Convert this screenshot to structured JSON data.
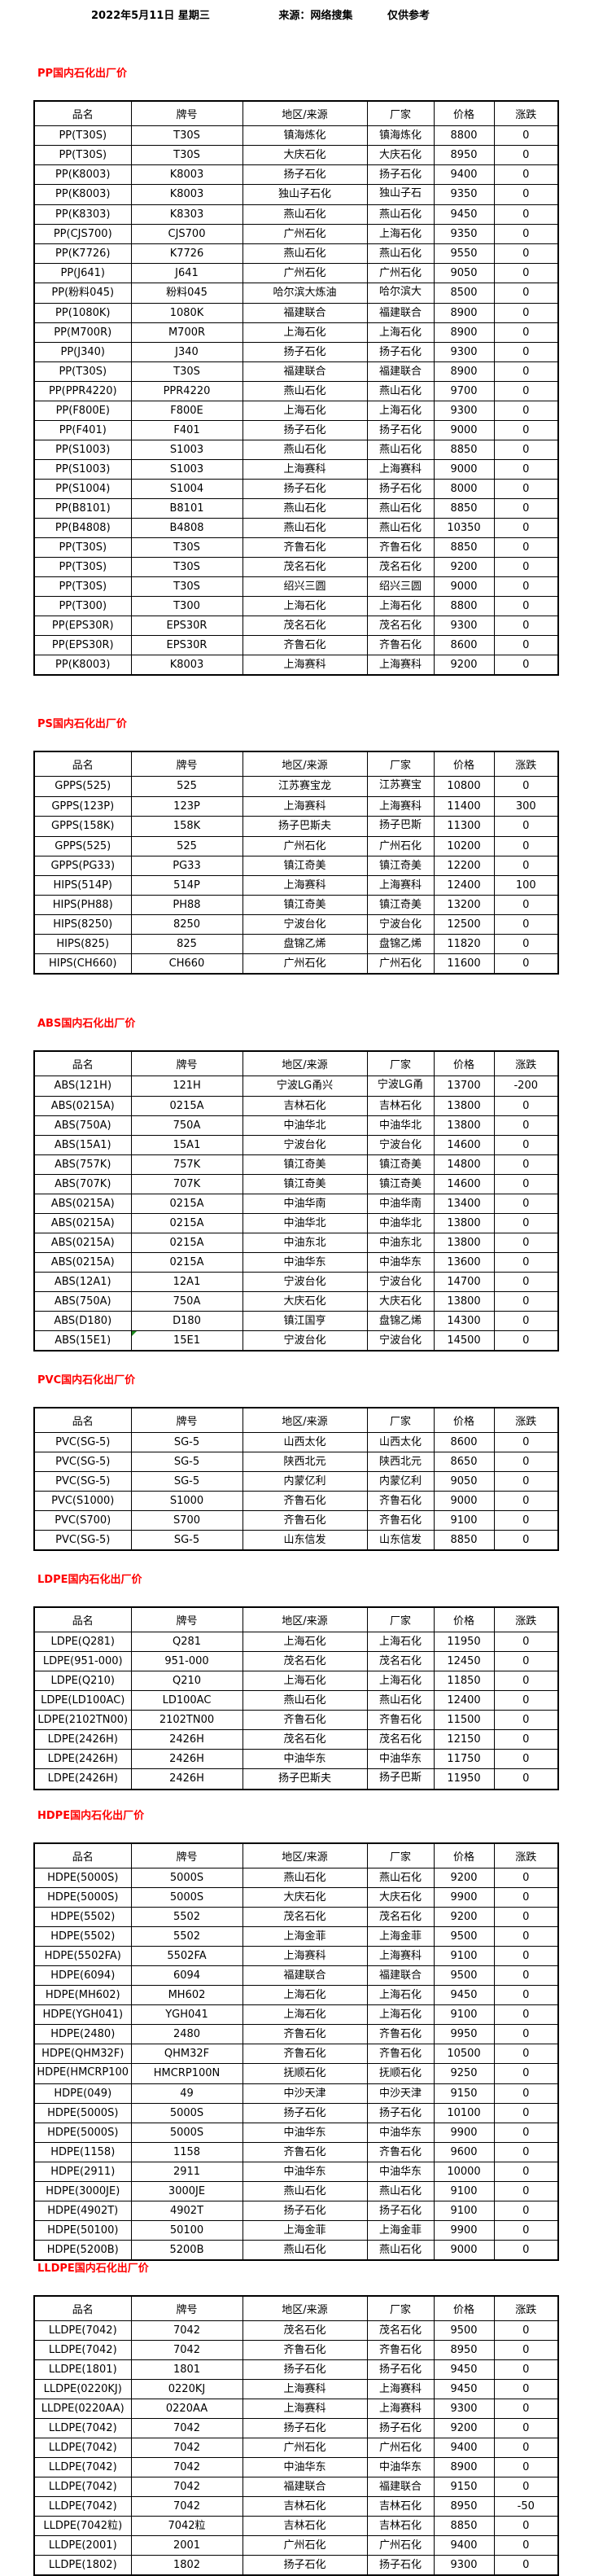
{
  "header": {
    "date": "2022年5月11日 星期三",
    "source": "来源：网络搜集",
    "note": "仅供参考"
  },
  "columns": [
    "品名",
    "牌号",
    "地区/来源",
    "厂家",
    "价格",
    "涨跌"
  ],
  "colors": {
    "heading": "#ff0000",
    "text": "#000000",
    "comment_marker": "#1f8a1f"
  },
  "sections": [
    {
      "key": "pp",
      "title": "PP国内石化出厂价",
      "rows": [
        [
          "PP(T30S)",
          "T30S",
          "镇海炼化",
          "镇海炼化",
          "8800",
          "0"
        ],
        [
          "PP(T30S)",
          "T30S",
          "大庆石化",
          "大庆石化",
          "8950",
          "0"
        ],
        [
          "PP(K8003)",
          "K8003",
          "扬子石化",
          "扬子石化",
          "9400",
          "0"
        ],
        [
          "PP(K8003)",
          "K8003",
          "独山子石化",
          "独山子石化",
          "9350",
          "0"
        ],
        [
          "PP(K8303)",
          "K8303",
          "燕山石化",
          "燕山石化",
          "9450",
          "0"
        ],
        [
          "PP(CJS700)",
          "CJS700",
          "广州石化",
          "上海石化",
          "9350",
          "0"
        ],
        [
          "PP(K7726)",
          "K7726",
          "燕山石化",
          "燕山石化",
          "9550",
          "0"
        ],
        [
          "PP(J641)",
          "J641",
          "广州石化",
          "广州石化",
          "9050",
          "0"
        ],
        [
          "PP(粉料045)",
          "粉料045",
          "哈尔滨大炼油",
          "哈尔滨大炼油",
          "8500",
          "0"
        ],
        [
          "PP(1080K)",
          "1080K",
          "福建联合",
          "福建联合",
          "8900",
          "0"
        ],
        [
          "PP(M700R)",
          "M700R",
          "上海石化",
          "上海石化",
          "8900",
          "0"
        ],
        [
          "PP(J340)",
          "J340",
          "扬子石化",
          "扬子石化",
          "9300",
          "0"
        ],
        [
          "PP(T30S)",
          "T30S",
          "福建联合",
          "福建联合",
          "8900",
          "0"
        ],
        [
          "PP(PPR4220)",
          "PPR4220",
          "燕山石化",
          "燕山石化",
          "9700",
          "0"
        ],
        [
          "PP(F800E)",
          "F800E",
          "上海石化",
          "上海石化",
          "9300",
          "0"
        ],
        [
          "PP(F401)",
          "F401",
          "扬子石化",
          "扬子石化",
          "9000",
          "0"
        ],
        [
          "PP(S1003)",
          "S1003",
          "燕山石化",
          "燕山石化",
          "8850",
          "0"
        ],
        [
          "PP(S1003)",
          "S1003",
          "上海赛科",
          "上海赛科",
          "9000",
          "0"
        ],
        [
          "PP(S1004)",
          "S1004",
          "扬子石化",
          "扬子石化",
          "8000",
          "0"
        ],
        [
          "PP(B8101)",
          "B8101",
          "燕山石化",
          "燕山石化",
          "8850",
          "0"
        ],
        [
          "PP(B4808)",
          "B4808",
          "燕山石化",
          "燕山石化",
          "10350",
          "0"
        ],
        [
          "PP(T30S)",
          "T30S",
          "齐鲁石化",
          "齐鲁石化",
          "8850",
          "0"
        ],
        [
          "PP(T30S)",
          "T30S",
          "茂名石化",
          "茂名石化",
          "9200",
          "0"
        ],
        [
          "PP(T30S)",
          "T30S",
          "绍兴三圆",
          "绍兴三圆",
          "9000",
          "0"
        ],
        [
          "PP(T300)",
          "T300",
          "上海石化",
          "上海石化",
          "8800",
          "0"
        ],
        [
          "PP(EPS30R)",
          "EPS30R",
          "茂名石化",
          "茂名石化",
          "9300",
          "0"
        ],
        [
          "PP(EPS30R)",
          "EPS30R",
          "齐鲁石化",
          "齐鲁石化",
          "8600",
          "0"
        ],
        [
          "PP(K8003)",
          "K8003",
          "上海赛科",
          "上海赛科",
          "9200",
          "0"
        ]
      ]
    },
    {
      "key": "ps",
      "title": "PS国内石化出厂价",
      "rows": [
        [
          "GPPS(525)",
          "525",
          "江苏赛宝龙",
          "江苏赛宝龙",
          "10800",
          "0"
        ],
        [
          "GPPS(123P)",
          "123P",
          "上海赛科",
          "上海赛科",
          "11400",
          "300"
        ],
        [
          "GPPS(158K)",
          "158K",
          "扬子巴斯夫",
          "扬子巴斯夫",
          "11300",
          "0"
        ],
        [
          "GPPS(525)",
          "525",
          "广州石化",
          "广州石化",
          "10200",
          "0"
        ],
        [
          "GPPS(PG33)",
          "PG33",
          "镇江奇美",
          "镇江奇美",
          "12200",
          "0"
        ],
        [
          "HIPS(514P)",
          "514P",
          "上海赛科",
          "上海赛科",
          "12400",
          "100"
        ],
        [
          "HIPS(PH88)",
          "PH88",
          "镇江奇美",
          "镇江奇美",
          "13200",
          "0"
        ],
        [
          "HIPS(8250)",
          "8250",
          "宁波台化",
          "宁波台化",
          "12500",
          "0"
        ],
        [
          "HIPS(825)",
          "825",
          "盘锦乙烯",
          "盘锦乙烯",
          "11820",
          "0"
        ],
        [
          "HIPS(CH660)",
          "CH660",
          "广州石化",
          "广州石化",
          "11600",
          "0"
        ]
      ]
    },
    {
      "key": "abs",
      "title": "ABS国内石化出厂价",
      "comment_row": 13,
      "rows": [
        [
          "ABS(121H)",
          "121H",
          "宁波LG甬兴",
          "宁波LG甬兴",
          "13700",
          "-200"
        ],
        [
          "ABS(0215A)",
          "0215A",
          "吉林石化",
          "吉林石化",
          "13800",
          "0"
        ],
        [
          "ABS(750A)",
          "750A",
          "中油华北",
          "中油华北",
          "13800",
          "0"
        ],
        [
          "ABS(15A1)",
          "15A1",
          "宁波台化",
          "宁波台化",
          "14600",
          "0"
        ],
        [
          "ABS(757K)",
          "757K",
          "镇江奇美",
          "镇江奇美",
          "14800",
          "0"
        ],
        [
          "ABS(707K)",
          "707K",
          "镇江奇美",
          "镇江奇美",
          "14600",
          "0"
        ],
        [
          "ABS(0215A)",
          "0215A",
          "中油华南",
          "中油华南",
          "13400",
          "0"
        ],
        [
          "ABS(0215A)",
          "0215A",
          "中油华北",
          "中油华北",
          "13800",
          "0"
        ],
        [
          "ABS(0215A)",
          "0215A",
          "中油东北",
          "中油东北",
          "13800",
          "0"
        ],
        [
          "ABS(0215A)",
          "0215A",
          "中油华东",
          "中油华东",
          "13600",
          "0"
        ],
        [
          "ABS(12A1)",
          "12A1",
          "宁波台化",
          "宁波台化",
          "14700",
          "0"
        ],
        [
          "ABS(750A)",
          "750A",
          "大庆石化",
          "大庆石化",
          "13800",
          "0"
        ],
        [
          "ABS(D180)",
          "D180",
          "镇江国亨",
          "盘锦乙烯",
          "14300",
          "0"
        ],
        [
          "ABS(15E1)",
          "15E1",
          "宁波台化",
          "宁波台化",
          "14500",
          "0"
        ]
      ]
    },
    {
      "key": "pvc",
      "title": "PVC国内石化出厂价",
      "rows": [
        [
          "PVC(SG-5)",
          "SG-5",
          "山西太化",
          "山西太化",
          "8600",
          "0"
        ],
        [
          "PVC(SG-5)",
          "SG-5",
          "陕西北元",
          "陕西北元",
          "8650",
          "0"
        ],
        [
          "PVC(SG-5)",
          "SG-5",
          "内蒙亿利",
          "内蒙亿利",
          "9050",
          "0"
        ],
        [
          "PVC(S1000)",
          "S1000",
          "齐鲁石化",
          "齐鲁石化",
          "9000",
          "0"
        ],
        [
          "PVC(S700)",
          "S700",
          "齐鲁石化",
          "齐鲁石化",
          "9100",
          "0"
        ],
        [
          "PVC(SG-5)",
          "SG-5",
          "山东信发",
          "山东信发",
          "8850",
          "0"
        ]
      ]
    },
    {
      "key": "ldpe",
      "title": "LDPE国内石化出厂价",
      "rows": [
        [
          "LDPE(Q281)",
          "Q281",
          "上海石化",
          "上海石化",
          "11950",
          "0"
        ],
        [
          "LDPE(951-000)",
          "951-000",
          "茂名石化",
          "茂名石化",
          "12450",
          "0"
        ],
        [
          "LDPE(Q210)",
          "Q210",
          "上海石化",
          "上海石化",
          "11850",
          "0"
        ],
        [
          "LDPE(LD100AC)",
          "LD100AC",
          "燕山石化",
          "燕山石化",
          "12400",
          "0"
        ],
        [
          "LDPE(2102TN00)",
          "2102TN00",
          "齐鲁石化",
          "齐鲁石化",
          "11500",
          "0"
        ],
        [
          "LDPE(2426H)",
          "2426H",
          "茂名石化",
          "茂名石化",
          "12150",
          "0"
        ],
        [
          "LDPE(2426H)",
          "2426H",
          "中油华东",
          "中油华东",
          "11750",
          "0"
        ],
        [
          "LDPE(2426H)",
          "2426H",
          "扬子巴斯夫",
          "扬子巴斯夫",
          "11950",
          "0"
        ]
      ]
    },
    {
      "key": "hdpe",
      "title": "HDPE国内石化出厂价",
      "rows": [
        [
          "HDPE(5000S)",
          "5000S",
          "燕山石化",
          "燕山石化",
          "9200",
          "0"
        ],
        [
          "HDPE(5000S)",
          "5000S",
          "大庆石化",
          "大庆石化",
          "9900",
          "0"
        ],
        [
          "HDPE(5502)",
          "5502",
          "茂名石化",
          "茂名石化",
          "9200",
          "0"
        ],
        [
          "HDPE(5502)",
          "5502",
          "上海金菲",
          "上海金菲",
          "9500",
          "0"
        ],
        [
          "HDPE(5502FA)",
          "5502FA",
          "上海赛科",
          "上海赛科",
          "9100",
          "0"
        ],
        [
          "HDPE(6094)",
          "6094",
          "福建联合",
          "福建联合",
          "9500",
          "0"
        ],
        [
          "HDPE(MH602)",
          "MH602",
          "上海石化",
          "上海石化",
          "9450",
          "0"
        ],
        [
          "HDPE(YGH041)",
          "YGH041",
          "上海石化",
          "上海石化",
          "9100",
          "0"
        ],
        [
          "HDPE(2480)",
          "2480",
          "齐鲁石化",
          "齐鲁石化",
          "9950",
          "0"
        ],
        [
          "HDPE(QHM32F)",
          "QHM32F",
          "齐鲁石化",
          "齐鲁石化",
          "10500",
          "0"
        ],
        [
          "HDPE(HMCRP100N)",
          "HMCRP100N",
          "抚顺石化",
          "抚顺石化",
          "9250",
          "0"
        ],
        [
          "HDPE(049)",
          "49",
          "中沙天津",
          "中沙天津",
          "9150",
          "0"
        ],
        [
          "HDPE(5000S)",
          "5000S",
          "扬子石化",
          "扬子石化",
          "10100",
          "0"
        ],
        [
          "HDPE(5000S)",
          "5000S",
          "中油华东",
          "中油华东",
          "9900",
          "0"
        ],
        [
          "HDPE(1158)",
          "1158",
          "齐鲁石化",
          "齐鲁石化",
          "9600",
          "0"
        ],
        [
          "HDPE(2911)",
          "2911",
          "中油华东",
          "中油华东",
          "10000",
          "0"
        ],
        [
          "HDPE(3000JE)",
          "3000JE",
          "燕山石化",
          "燕山石化",
          "9100",
          "0"
        ],
        [
          "HDPE(4902T)",
          "4902T",
          "扬子石化",
          "扬子石化",
          "9100",
          "0"
        ],
        [
          "HDPE(50100)",
          "50100",
          "上海金菲",
          "上海金菲",
          "9900",
          "0"
        ],
        [
          "HDPE(5200B)",
          "5200B",
          "燕山石化",
          "燕山石化",
          "9000",
          "0"
        ]
      ]
    },
    {
      "key": "lldpe",
      "title": "LLDPE国内石化出厂价",
      "rows": [
        [
          "LLDPE(7042)",
          "7042",
          "茂名石化",
          "茂名石化",
          "9500",
          "0"
        ],
        [
          "LLDPE(7042)",
          "7042",
          "齐鲁石化",
          "齐鲁石化",
          "8950",
          "0"
        ],
        [
          "LLDPE(1801)",
          "1801",
          "扬子石化",
          "扬子石化",
          "9450",
          "0"
        ],
        [
          "LLDPE(0220KJ)",
          "0220KJ",
          "上海赛科",
          "上海赛科",
          "9450",
          "0"
        ],
        [
          "LLDPE(0220AA)",
          "0220AA",
          "上海赛科",
          "上海赛科",
          "9300",
          "0"
        ],
        [
          "LLDPE(7042)",
          "7042",
          "扬子石化",
          "扬子石化",
          "9200",
          "0"
        ],
        [
          "LLDPE(7042)",
          "7042",
          "广州石化",
          "广州石化",
          "9400",
          "0"
        ],
        [
          "LLDPE(7042)",
          "7042",
          "中油华东",
          "中油华东",
          "8900",
          "0"
        ],
        [
          "LLDPE(7042)",
          "7042",
          "福建联合",
          "福建联合",
          "9150",
          "0"
        ],
        [
          "LLDPE(7042)",
          "7042",
          "吉林石化",
          "吉林石化",
          "8950",
          "-50"
        ],
        [
          "LLDPE(7042粒)",
          "7042粒",
          "吉林石化",
          "吉林石化",
          "8850",
          "0"
        ],
        [
          "LLDPE(2001)",
          "2001",
          "广州石化",
          "广州石化",
          "9400",
          "0"
        ],
        [
          "LLDPE(1802)",
          "1802",
          "扬子石化",
          "扬子石化",
          "9300",
          "0"
        ]
      ]
    }
  ]
}
